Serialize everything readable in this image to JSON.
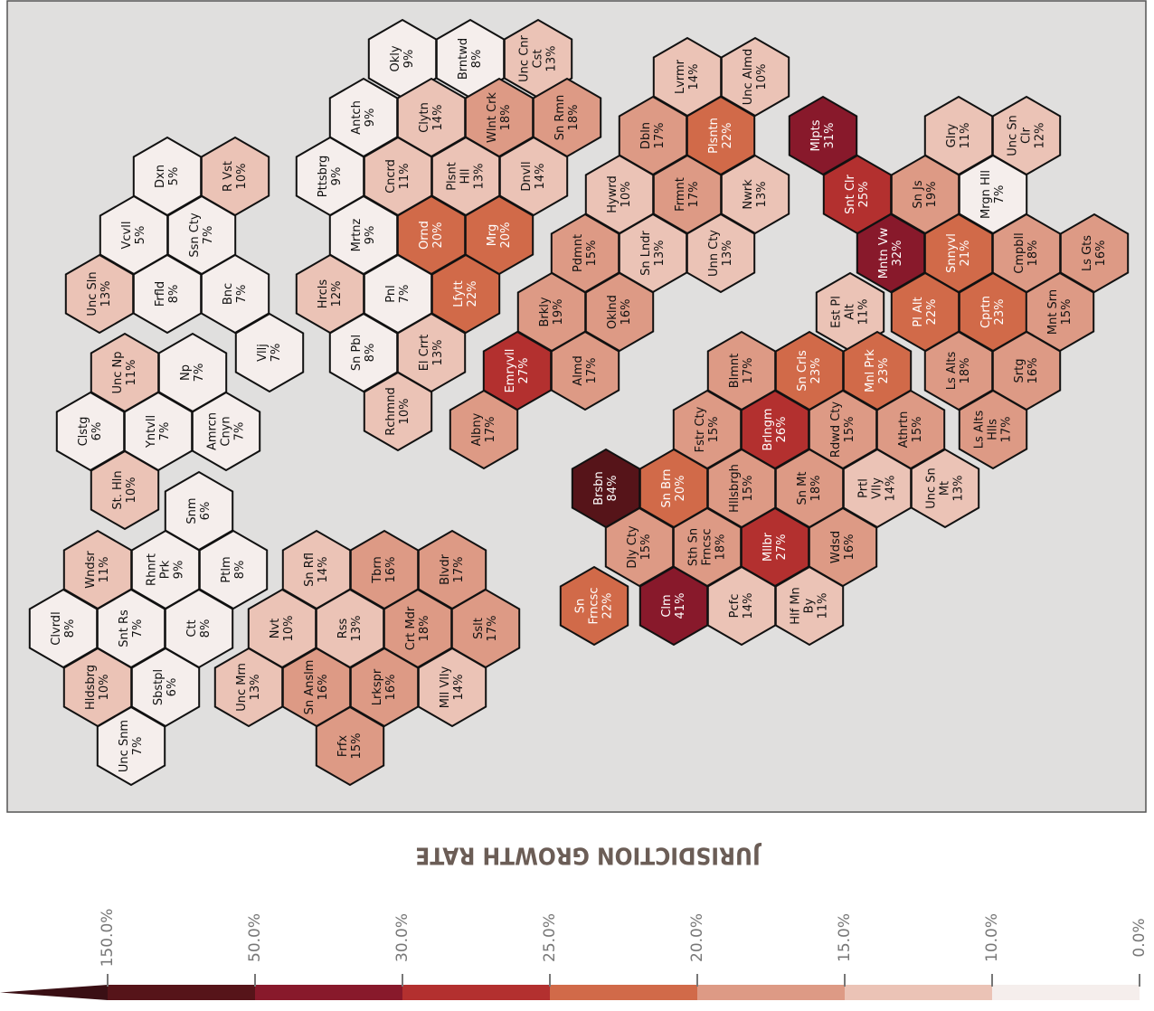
{
  "map": {
    "title": "JURISDICTION GROWTH RATE",
    "hexes": [
      {
        "name": [
          "Okly"
        ],
        "value": 9,
        "value_label": "9%"
      },
      {
        "name": [
          "Brntwd"
        ],
        "value": 8,
        "value_label": "8%"
      },
      {
        "name": [
          "Unc Cnr",
          "Cst"
        ],
        "value": 13,
        "value_label": "13%"
      },
      {
        "name": [
          "Antch"
        ],
        "value": 9,
        "value_label": "9%"
      },
      {
        "name": [
          "Clytn"
        ],
        "value": 14,
        "value_label": "14%"
      },
      {
        "name": [
          "Wlnt Crk"
        ],
        "value": 18,
        "value_label": "18%"
      },
      {
        "name": [
          "Sn Rmn"
        ],
        "value": 18,
        "value_label": "18%"
      },
      {
        "name": [
          "Pttsbrg"
        ],
        "value": 9,
        "value_label": "9%"
      },
      {
        "name": [
          "Cncrd"
        ],
        "value": 11,
        "value_label": "11%"
      },
      {
        "name": [
          "Plsnt",
          "Hll"
        ],
        "value": 13,
        "value_label": "13%"
      },
      {
        "name": [
          "Dnvll"
        ],
        "value": 14,
        "value_label": "14%"
      },
      {
        "name": [
          "Mrtnz"
        ],
        "value": 9,
        "value_label": "9%"
      },
      {
        "name": [
          "Ornd"
        ],
        "value": 20,
        "value_label": "20%"
      },
      {
        "name": [
          "Mrg"
        ],
        "value": 20,
        "value_label": "20%"
      },
      {
        "name": [
          "Hrcls"
        ],
        "value": 12,
        "value_label": "12%"
      },
      {
        "name": [
          "Pnl"
        ],
        "value": 7,
        "value_label": "7%"
      },
      {
        "name": [
          "Lfytt"
        ],
        "value": 22,
        "value_label": "22%"
      },
      {
        "name": [
          "Sn Pbl"
        ],
        "value": 8,
        "value_label": "8%"
      },
      {
        "name": [
          "El Crrt"
        ],
        "value": 13,
        "value_label": "13%"
      },
      {
        "name": [
          "Rchmnd"
        ],
        "value": 10,
        "value_label": "10%"
      },
      {
        "name": [
          "Dxn"
        ],
        "value": 5,
        "value_label": "5%"
      },
      {
        "name": [
          "R Vst"
        ],
        "value": 10,
        "value_label": "10%"
      },
      {
        "name": [
          "Vcvll"
        ],
        "value": 5,
        "value_label": "5%"
      },
      {
        "name": [
          "Ssn Cty"
        ],
        "value": 7,
        "value_label": "7%"
      },
      {
        "name": [
          "Unc Sln"
        ],
        "value": 13,
        "value_label": "13%"
      },
      {
        "name": [
          "Frfld"
        ],
        "value": 8,
        "value_label": "8%"
      },
      {
        "name": [
          "Bnc"
        ],
        "value": 7,
        "value_label": "7%"
      },
      {
        "name": [
          "Vllj"
        ],
        "value": 7,
        "value_label": "7%"
      },
      {
        "name": [
          "Unc Np"
        ],
        "value": 11,
        "value_label": "11%"
      },
      {
        "name": [
          "Np"
        ],
        "value": 7,
        "value_label": "7%"
      },
      {
        "name": [
          "Clstg"
        ],
        "value": 6,
        "value_label": "6%"
      },
      {
        "name": [
          "Yntvll"
        ],
        "value": 7,
        "value_label": "7%"
      },
      {
        "name": [
          "Amrcn",
          "Cnyn"
        ],
        "value": 7,
        "value_label": "7%"
      },
      {
        "name": [
          "St. Hln"
        ],
        "value": 10,
        "value_label": "10%"
      },
      {
        "name": [
          "Snm"
        ],
        "value": 6,
        "value_label": "6%"
      },
      {
        "name": [
          "Wndsr"
        ],
        "value": 11,
        "value_label": "11%"
      },
      {
        "name": [
          "Rhnrt",
          "Prk"
        ],
        "value": 9,
        "value_label": "9%"
      },
      {
        "name": [
          "Ptlm"
        ],
        "value": 8,
        "value_label": "8%"
      },
      {
        "name": [
          "Clvrdl"
        ],
        "value": 8,
        "value_label": "8%"
      },
      {
        "name": [
          "Snt Rs"
        ],
        "value": 7,
        "value_label": "7%"
      },
      {
        "name": [
          "Ctt"
        ],
        "value": 8,
        "value_label": "8%"
      },
      {
        "name": [
          "Hldsbrg"
        ],
        "value": 10,
        "value_label": "10%"
      },
      {
        "name": [
          "Sbstpl"
        ],
        "value": 6,
        "value_label": "6%"
      },
      {
        "name": [
          "Unc Snm"
        ],
        "value": 7,
        "value_label": "7%"
      },
      {
        "name": [
          "Sn Rfl"
        ],
        "value": 14,
        "value_label": "14%"
      },
      {
        "name": [
          "Tbrn"
        ],
        "value": 16,
        "value_label": "16%"
      },
      {
        "name": [
          "Blvdr"
        ],
        "value": 17,
        "value_label": "17%"
      },
      {
        "name": [
          "Nvt"
        ],
        "value": 10,
        "value_label": "10%"
      },
      {
        "name": [
          "Rss"
        ],
        "value": 13,
        "value_label": "13%"
      },
      {
        "name": [
          "Crt Mdr"
        ],
        "value": 18,
        "value_label": "18%"
      },
      {
        "name": [
          "Sslt"
        ],
        "value": 17,
        "value_label": "17%"
      },
      {
        "name": [
          "Unc Mrn"
        ],
        "value": 13,
        "value_label": "13%"
      },
      {
        "name": [
          "Sn Anslm"
        ],
        "value": 16,
        "value_label": "16%"
      },
      {
        "name": [
          "Lrkspr"
        ],
        "value": 16,
        "value_label": "16%"
      },
      {
        "name": [
          "Mll Vlly"
        ],
        "value": 14,
        "value_label": "14%"
      },
      {
        "name": [
          "Frfx"
        ],
        "value": 15,
        "value_label": "15%"
      },
      {
        "name": [
          "Lvrmr"
        ],
        "value": 14,
        "value_label": "14%"
      },
      {
        "name": [
          "Unc Almd"
        ],
        "value": 10,
        "value_label": "10%"
      },
      {
        "name": [
          "Dbln"
        ],
        "value": 17,
        "value_label": "17%"
      },
      {
        "name": [
          "Plsntn"
        ],
        "value": 22,
        "value_label": "22%"
      },
      {
        "name": [
          "Hywrd"
        ],
        "value": 10,
        "value_label": "10%"
      },
      {
        "name": [
          "Frmnt"
        ],
        "value": 17,
        "value_label": "17%"
      },
      {
        "name": [
          "Nwrk"
        ],
        "value": 13,
        "value_label": "13%"
      },
      {
        "name": [
          "Pdmnt"
        ],
        "value": 15,
        "value_label": "15%"
      },
      {
        "name": [
          "Sn Lndr"
        ],
        "value": 13,
        "value_label": "13%"
      },
      {
        "name": [
          "Unn Cty"
        ],
        "value": 13,
        "value_label": "13%"
      },
      {
        "name": [
          "Brkly"
        ],
        "value": 19,
        "value_label": "19%"
      },
      {
        "name": [
          "Oklnd"
        ],
        "value": 16,
        "value_label": "16%"
      },
      {
        "name": [
          "Emryvll"
        ],
        "value": 27,
        "value_label": "27%"
      },
      {
        "name": [
          "Almd"
        ],
        "value": 17,
        "value_label": "17%"
      },
      {
        "name": [
          "Albny"
        ],
        "value": 17,
        "value_label": "17%"
      },
      {
        "name": [
          "Mlpts"
        ],
        "value": 31,
        "value_label": "31%"
      },
      {
        "name": [
          "Glry"
        ],
        "value": 11,
        "value_label": "11%"
      },
      {
        "name": [
          "Unc Sn",
          "Clr"
        ],
        "value": 12,
        "value_label": "12%"
      },
      {
        "name": [
          "Snt Clr"
        ],
        "value": 25,
        "value_label": "25%"
      },
      {
        "name": [
          "Sn Js"
        ],
        "value": 19,
        "value_label": "19%"
      },
      {
        "name": [
          "Mrgn Hll"
        ],
        "value": 7,
        "value_label": "7%"
      },
      {
        "name": [
          "Mntn Vw"
        ],
        "value": 32,
        "value_label": "32%"
      },
      {
        "name": [
          "Snnyvl"
        ],
        "value": 21,
        "value_label": "21%"
      },
      {
        "name": [
          "Cmpbll"
        ],
        "value": 18,
        "value_label": "18%"
      },
      {
        "name": [
          "Ls Gts"
        ],
        "value": 16,
        "value_label": "16%"
      },
      {
        "name": [
          "Pl Alt"
        ],
        "value": 22,
        "value_label": "22%"
      },
      {
        "name": [
          "Cprtn"
        ],
        "value": 23,
        "value_label": "23%"
      },
      {
        "name": [
          "Mnt Srn"
        ],
        "value": 15,
        "value_label": "15%"
      },
      {
        "name": [
          "Est Pl",
          "Alt"
        ],
        "value": 11,
        "value_label": "11%"
      },
      {
        "name": [
          "Ls Alts"
        ],
        "value": 18,
        "value_label": "18%"
      },
      {
        "name": [
          "Srtg"
        ],
        "value": 16,
        "value_label": "16%"
      },
      {
        "name": [
          "Ls Alts",
          "Hlls"
        ],
        "value": 17,
        "value_label": "17%"
      },
      {
        "name": [
          "Blmnt"
        ],
        "value": 17,
        "value_label": "17%"
      },
      {
        "name": [
          "Sn Crls"
        ],
        "value": 23,
        "value_label": "23%"
      },
      {
        "name": [
          "Mnl Prk"
        ],
        "value": 23,
        "value_label": "23%"
      },
      {
        "name": [
          "Fstr Cty"
        ],
        "value": 15,
        "value_label": "15%"
      },
      {
        "name": [
          "Brlngm"
        ],
        "value": 26,
        "value_label": "26%"
      },
      {
        "name": [
          "Rdwd Cty"
        ],
        "value": 15,
        "value_label": "15%"
      },
      {
        "name": [
          "Athrtn"
        ],
        "value": 15,
        "value_label": "15%"
      },
      {
        "name": [
          "Brsbn"
        ],
        "value": 84,
        "value_label": "84%"
      },
      {
        "name": [
          "Sn Brn"
        ],
        "value": 20,
        "value_label": "20%"
      },
      {
        "name": [
          "Hllsbrgh"
        ],
        "value": 15,
        "value_label": "15%"
      },
      {
        "name": [
          "Sn Mt"
        ],
        "value": 18,
        "value_label": "18%"
      },
      {
        "name": [
          "Prtl",
          "Vlly"
        ],
        "value": 14,
        "value_label": "14%"
      },
      {
        "name": [
          "Unc Sn",
          "Mt"
        ],
        "value": 13,
        "value_label": "13%"
      },
      {
        "name": [
          "Dly Cty"
        ],
        "value": 15,
        "value_label": "15%"
      },
      {
        "name": [
          "Sth Sn",
          "Frncsc"
        ],
        "value": 18,
        "value_label": "18%"
      },
      {
        "name": [
          "Mllbr"
        ],
        "value": 27,
        "value_label": "27%"
      },
      {
        "name": [
          "Wdsd"
        ],
        "value": 16,
        "value_label": "16%"
      },
      {
        "name": [
          "Sn",
          "Frncsc"
        ],
        "value": 22,
        "value_label": "22%"
      },
      {
        "name": [
          "Clm"
        ],
        "value": 41,
        "value_label": "41%"
      },
      {
        "name": [
          "Pcfc"
        ],
        "value": 14,
        "value_label": "14%"
      },
      {
        "name": [
          "Hlf Mn",
          "By"
        ],
        "value": 11,
        "value_label": "11%"
      }
    ],
    "legend": {
      "ticks": [
        {
          "value": 0,
          "label": "0.0%"
        },
        {
          "value": 10,
          "label": "10.0%"
        },
        {
          "value": 15,
          "label": "15.0%"
        },
        {
          "value": 20,
          "label": "20.0%"
        },
        {
          "value": 25,
          "label": "25.0%"
        },
        {
          "value": 30,
          "label": "30.0%"
        },
        {
          "value": 50,
          "label": "50.0%"
        },
        {
          "value": 150,
          "label": "150.0%"
        }
      ],
      "colors": [
        "#f5eeec",
        "#ebc3b6",
        "#dd9a85",
        "#d16a49",
        "#b3302f",
        "#88192b",
        "#561419"
      ]
    }
  }
}
